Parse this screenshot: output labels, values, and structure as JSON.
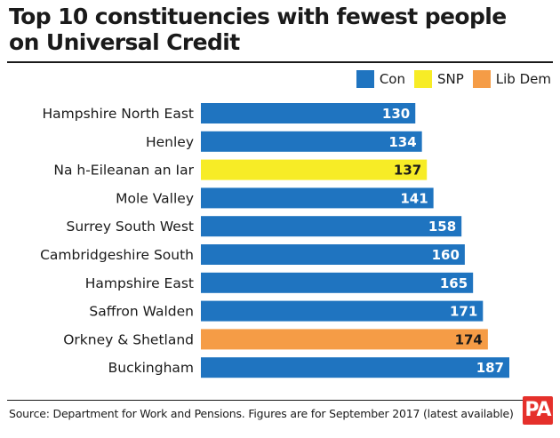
{
  "chart_data": {
    "type": "bar",
    "orientation": "horizontal",
    "title": "Top 10 constituencies with fewest people on Universal Credit",
    "categories": [
      "Hampshire North East",
      "Henley",
      "Na h-Eileanan an Iar",
      "Mole Valley",
      "Surrey South West",
      "Cambridgeshire South",
      "Hampshire East",
      "Saffron Walden",
      "Orkney & Shetland",
      "Buckingham"
    ],
    "values": [
      130,
      134,
      137,
      141,
      158,
      160,
      165,
      171,
      174,
      187
    ],
    "party": [
      "Con",
      "Con",
      "SNP",
      "Con",
      "Con",
      "Con",
      "Con",
      "Con",
      "Lib Dem",
      "Con"
    ],
    "legend": [
      {
        "name": "Con",
        "color": "#1f74c0"
      },
      {
        "name": "SNP",
        "color": "#f7ec26"
      },
      {
        "name": "Lib Dem",
        "color": "#f59c46"
      }
    ],
    "legend_position": "top-right",
    "grid": false,
    "xlim": [
      0,
      187
    ],
    "data_labels": true
  },
  "source": "Source: Department for Work and Pensions. Figures are for September 2017 (latest available)",
  "logo": {
    "text": "PA",
    "color": "#e5302b"
  }
}
